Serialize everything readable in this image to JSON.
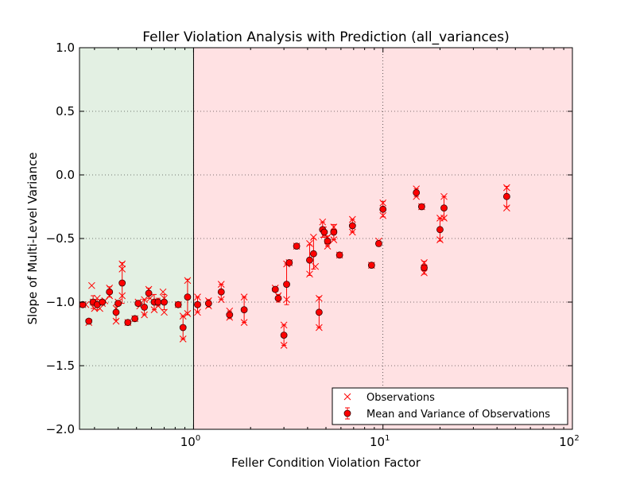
{
  "chart_data": {
    "type": "scatter",
    "title": "Feller Violation Analysis with Prediction (all_variances)",
    "xlabel": "Feller Condition Violation Factor",
    "ylabel": "Slope of Multi-Level Variance",
    "xscale": "log",
    "xlim": [
      0.25,
      100
    ],
    "ylim": [
      -2.0,
      1.0
    ],
    "x_ticks": [
      {
        "value": 1,
        "base": "10",
        "exp": "0"
      },
      {
        "value": 10,
        "base": "10",
        "exp": "1"
      },
      {
        "value": 100,
        "base": "10",
        "exp": "2"
      }
    ],
    "y_ticks": [
      1.0,
      0.5,
      0.0,
      -0.5,
      -1.0,
      -1.5,
      -2.0
    ],
    "y_tick_labels": [
      "1.0",
      "0.5",
      "0.0",
      "−0.5",
      "−1.0",
      "−1.5",
      "−2.0"
    ],
    "grid": true,
    "legend_position": "lower-right",
    "regions": [
      {
        "x_from": 0.25,
        "x_to": 1.0,
        "color": "#e3f0e3"
      },
      {
        "x_from": 1.0,
        "x_to": 100,
        "color": "#ffe1e3"
      }
    ],
    "series": [
      {
        "name": "Observations",
        "marker": "x",
        "color": "#ff0000",
        "points": [
          [
            0.26,
            -1.02
          ],
          [
            0.27,
            -1.02
          ],
          [
            0.28,
            -1.16
          ],
          [
            0.29,
            -0.87
          ],
          [
            0.295,
            -1.0
          ],
          [
            0.3,
            -1.05
          ],
          [
            0.31,
            -0.97
          ],
          [
            0.32,
            -1.05
          ],
          [
            0.33,
            -1.01
          ],
          [
            0.34,
            -0.99
          ],
          [
            0.36,
            -0.89
          ],
          [
            0.36,
            -0.95
          ],
          [
            0.39,
            -1.15
          ],
          [
            0.39,
            -1.05
          ],
          [
            0.4,
            -1.0
          ],
          [
            0.42,
            -0.7
          ],
          [
            0.42,
            -0.74
          ],
          [
            0.42,
            -0.95
          ],
          [
            0.45,
            -1.16
          ],
          [
            0.49,
            -1.13
          ],
          [
            0.51,
            -1.0
          ],
          [
            0.52,
            -1.03
          ],
          [
            0.55,
            -1.1
          ],
          [
            0.55,
            -0.98
          ],
          [
            0.58,
            -0.9
          ],
          [
            0.59,
            -0.97
          ],
          [
            0.62,
            -1.06
          ],
          [
            0.65,
            -1.03
          ],
          [
            0.69,
            -0.92
          ],
          [
            0.7,
            -1.08
          ],
          [
            0.7,
            -0.97
          ],
          [
            0.83,
            -1.02
          ],
          [
            0.88,
            -1.29
          ],
          [
            0.88,
            -1.11
          ],
          [
            0.93,
            -0.83
          ],
          [
            0.93,
            -1.09
          ],
          [
            1.05,
            -0.96
          ],
          [
            1.05,
            -1.08
          ],
          [
            1.2,
            -0.99
          ],
          [
            1.2,
            -1.03
          ],
          [
            1.4,
            -0.86
          ],
          [
            1.4,
            -0.98
          ],
          [
            1.55,
            -1.12
          ],
          [
            1.55,
            -1.07
          ],
          [
            1.85,
            -0.96
          ],
          [
            1.85,
            -1.16
          ],
          [
            2.7,
            -0.89
          ],
          [
            2.8,
            -0.95
          ],
          [
            3.0,
            -1.18
          ],
          [
            3.0,
            -1.34
          ],
          [
            3.1,
            -0.98
          ],
          [
            3.1,
            -0.7
          ],
          [
            3.2,
            -0.69
          ],
          [
            3.5,
            -0.56
          ],
          [
            4.1,
            -0.54
          ],
          [
            4.1,
            -0.78
          ],
          [
            4.3,
            -0.49
          ],
          [
            4.4,
            -0.72
          ],
          [
            4.6,
            -1.2
          ],
          [
            4.6,
            -0.97
          ],
          [
            4.8,
            -0.37
          ],
          [
            4.9,
            -0.47
          ],
          [
            5.1,
            -0.49
          ],
          [
            5.1,
            -0.56
          ],
          [
            5.5,
            -0.41
          ],
          [
            5.5,
            -0.51
          ],
          [
            5.9,
            -0.63
          ],
          [
            6.9,
            -0.35
          ],
          [
            6.9,
            -0.45
          ],
          [
            8.7,
            -0.71
          ],
          [
            9.5,
            -0.52
          ],
          [
            10.0,
            -0.22
          ],
          [
            10.0,
            -0.32
          ],
          [
            15.0,
            -0.11
          ],
          [
            15.0,
            -0.17
          ],
          [
            16.0,
            -0.25
          ],
          [
            16.5,
            -0.69
          ],
          [
            16.5,
            -0.77
          ],
          [
            20.0,
            -0.34
          ],
          [
            20.0,
            -0.51
          ],
          [
            21.0,
            -0.17
          ],
          [
            21.0,
            -0.34
          ],
          [
            45.0,
            -0.1
          ],
          [
            45.0,
            -0.26
          ]
        ]
      },
      {
        "name": "Mean and Variance of Observations",
        "marker": "o",
        "color": "#ff0000",
        "edge_color": "#330000",
        "points": [
          [
            0.26,
            -1.02,
            0.0
          ],
          [
            0.28,
            -1.15,
            0.0
          ],
          [
            0.295,
            -1.0,
            0.05
          ],
          [
            0.31,
            -1.02,
            0.04
          ],
          [
            0.33,
            -1.0,
            0.0
          ],
          [
            0.36,
            -0.92,
            0.04
          ],
          [
            0.39,
            -1.08,
            0.06
          ],
          [
            0.4,
            -1.01,
            0.0
          ],
          [
            0.42,
            -0.85,
            0.16
          ],
          [
            0.45,
            -1.16,
            0.0
          ],
          [
            0.49,
            -1.13,
            0.0
          ],
          [
            0.51,
            -1.01,
            0.02
          ],
          [
            0.55,
            -1.04,
            0.06
          ],
          [
            0.58,
            -0.93,
            0.04
          ],
          [
            0.62,
            -1.0,
            0.06
          ],
          [
            0.65,
            -1.0,
            0.03
          ],
          [
            0.7,
            -1.0,
            0.06
          ],
          [
            0.83,
            -1.02,
            0.0
          ],
          [
            0.88,
            -1.2,
            0.09
          ],
          [
            0.93,
            -0.96,
            0.14
          ],
          [
            1.05,
            -1.02,
            0.06
          ],
          [
            1.2,
            -1.01,
            0.03
          ],
          [
            1.4,
            -0.92,
            0.06
          ],
          [
            1.55,
            -1.1,
            0.03
          ],
          [
            1.85,
            -1.06,
            0.1
          ],
          [
            2.7,
            -0.9,
            0.0
          ],
          [
            2.8,
            -0.97,
            0.03
          ],
          [
            3.0,
            -1.26,
            0.08
          ],
          [
            3.1,
            -0.86,
            0.16
          ],
          [
            3.2,
            -0.69,
            0.0
          ],
          [
            3.5,
            -0.56,
            0.0
          ],
          [
            4.1,
            -0.67,
            0.12
          ],
          [
            4.3,
            -0.62,
            0.12
          ],
          [
            4.6,
            -1.08,
            0.12
          ],
          [
            4.8,
            -0.43,
            0.06
          ],
          [
            4.9,
            -0.45,
            0.04
          ],
          [
            5.1,
            -0.52,
            0.04
          ],
          [
            5.5,
            -0.45,
            0.06
          ],
          [
            5.9,
            -0.63,
            0.0
          ],
          [
            6.9,
            -0.4,
            0.05
          ],
          [
            8.7,
            -0.71,
            0.0
          ],
          [
            9.5,
            -0.54,
            0.02
          ],
          [
            10.0,
            -0.27,
            0.06
          ],
          [
            15.0,
            -0.14,
            0.03
          ],
          [
            16.0,
            -0.25,
            0.0
          ],
          [
            16.5,
            -0.73,
            0.05
          ],
          [
            20.0,
            -0.43,
            0.09
          ],
          [
            21.0,
            -0.26,
            0.09
          ],
          [
            45.0,
            -0.17,
            0.08
          ]
        ]
      }
    ]
  }
}
